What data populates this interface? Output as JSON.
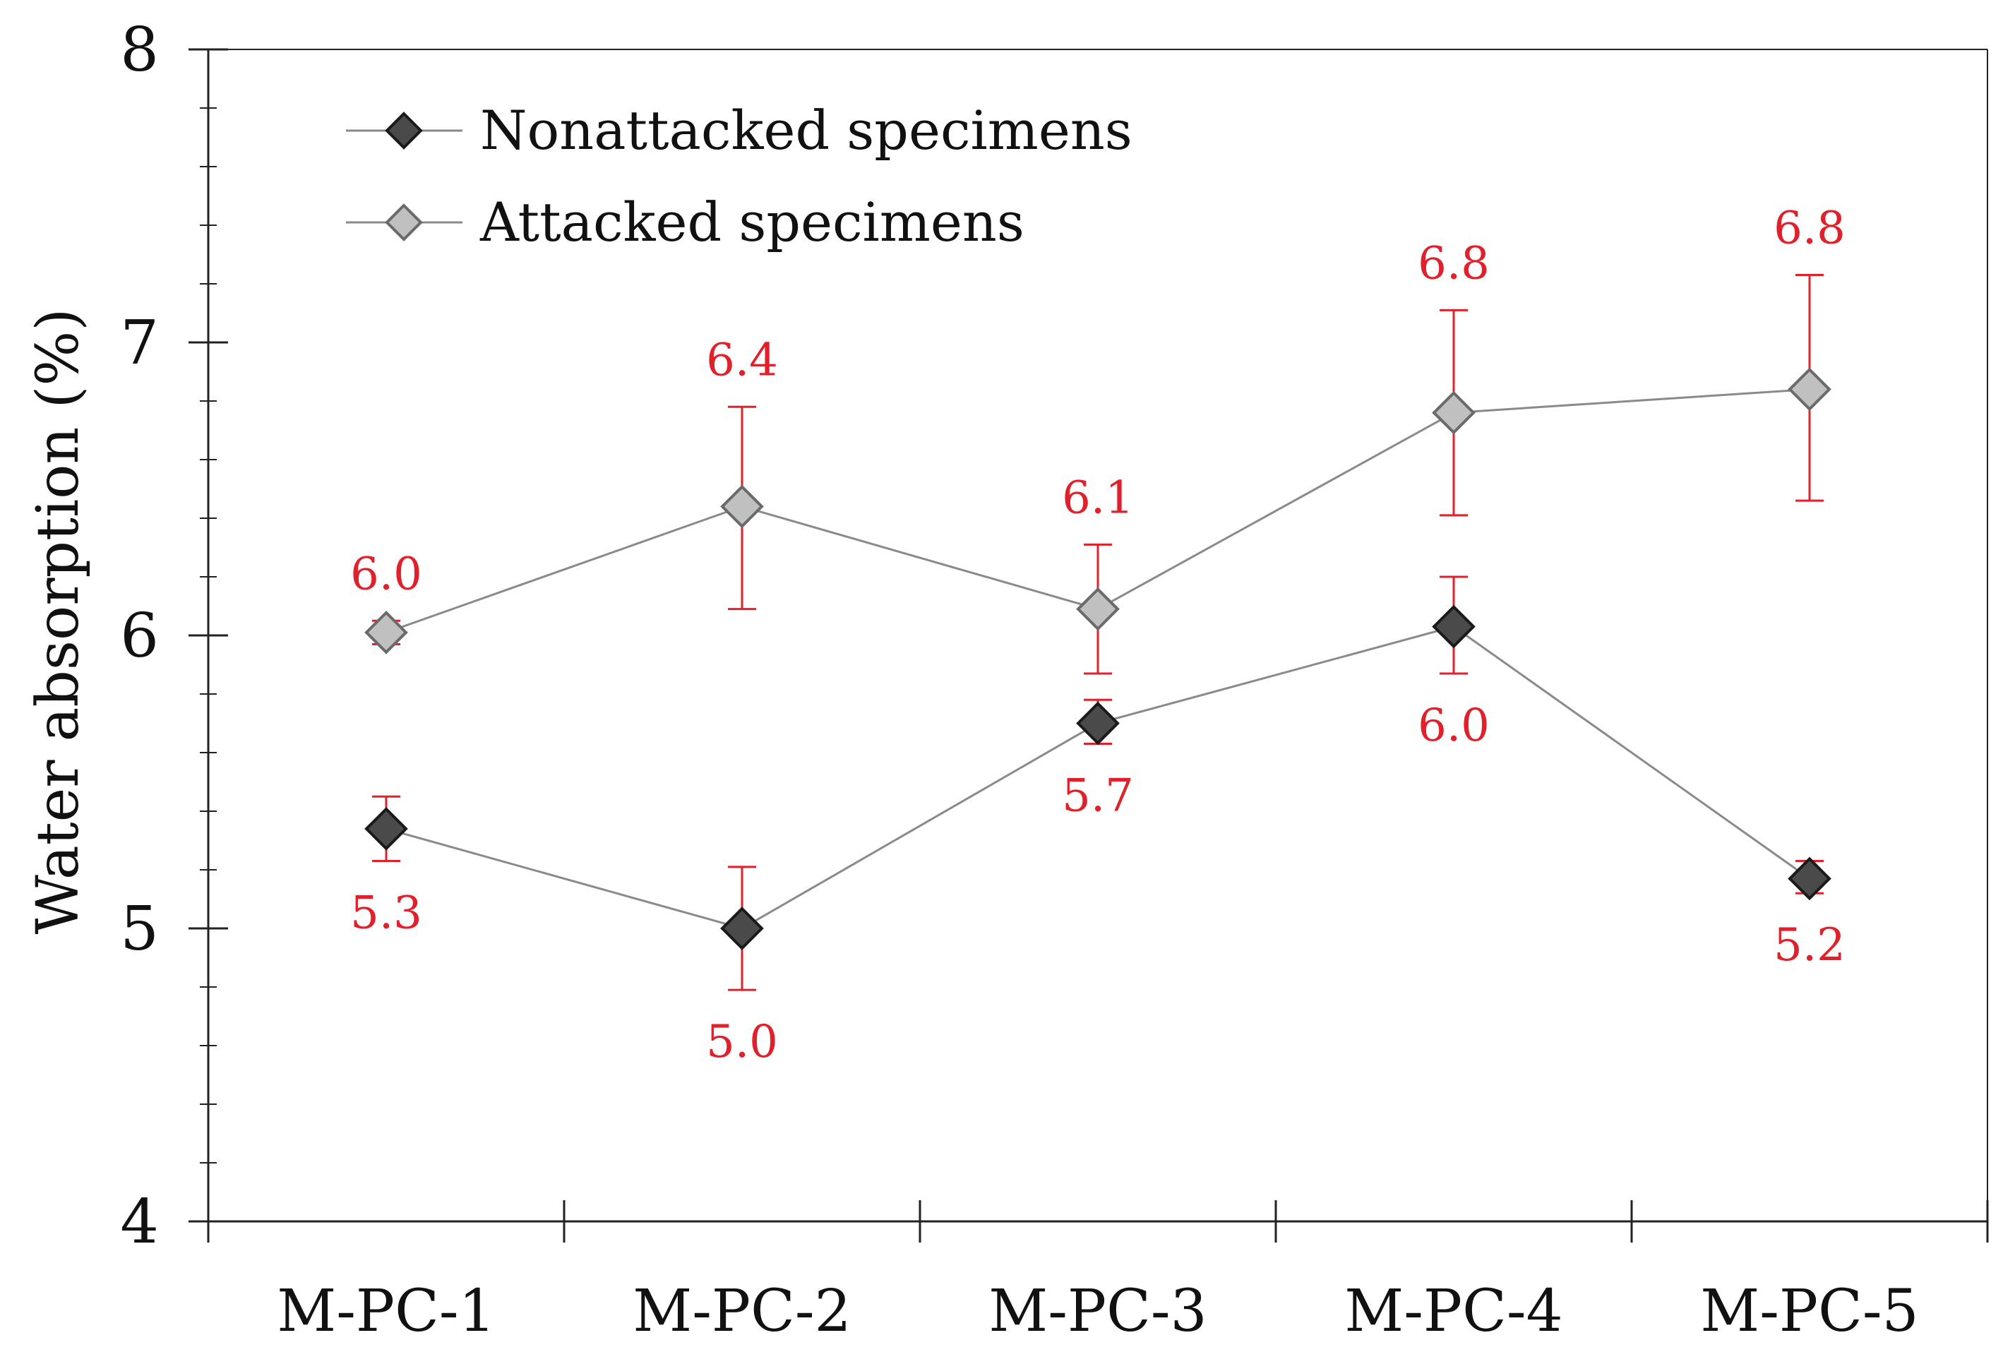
{
  "chart_data": {
    "type": "line",
    "title": "",
    "xlabel": "",
    "ylabel": "Water absorption (%)",
    "ylim": [
      4,
      8
    ],
    "y_ticks": [
      "4",
      "5",
      "6",
      "7",
      "8"
    ],
    "grid": false,
    "legend_position": "top-left",
    "categories": [
      "M-PC-1",
      "M-PC-2",
      "M-PC-3",
      "M-PC-4",
      "M-PC-5"
    ],
    "series": [
      {
        "name": "Nonattacked specimens",
        "values": [
          5.34,
          5.0,
          5.7,
          6.03,
          5.17
        ],
        "err_low": [
          0.11,
          0.21,
          0.07,
          0.16,
          0.05
        ],
        "err_high": [
          0.11,
          0.21,
          0.08,
          0.17,
          0.06
        ],
        "labels": [
          "5.3",
          "5.0",
          "5.7",
          "6.0",
          "5.2"
        ],
        "label_position": "below",
        "marker": "diamond",
        "marker_fill": "#4a4a4a",
        "marker_stroke": "#1a1a1a"
      },
      {
        "name": "Attacked specimens",
        "values": [
          6.01,
          6.44,
          6.09,
          6.76,
          6.84
        ],
        "err_low": [
          0.04,
          0.35,
          0.22,
          0.35,
          0.38
        ],
        "err_high": [
          0.04,
          0.34,
          0.22,
          0.35,
          0.39
        ],
        "labels": [
          "6.0",
          "6.4",
          "6.1",
          "6.8",
          "6.8"
        ],
        "label_position": "above",
        "marker": "diamond",
        "marker_fill": "#c0c0c0",
        "marker_stroke": "#6a6a6a"
      }
    ],
    "colors": {
      "axis": "#222222",
      "line": "#8a8a8a",
      "error_bar": "#e0212b",
      "data_label": "#e0212b"
    }
  }
}
